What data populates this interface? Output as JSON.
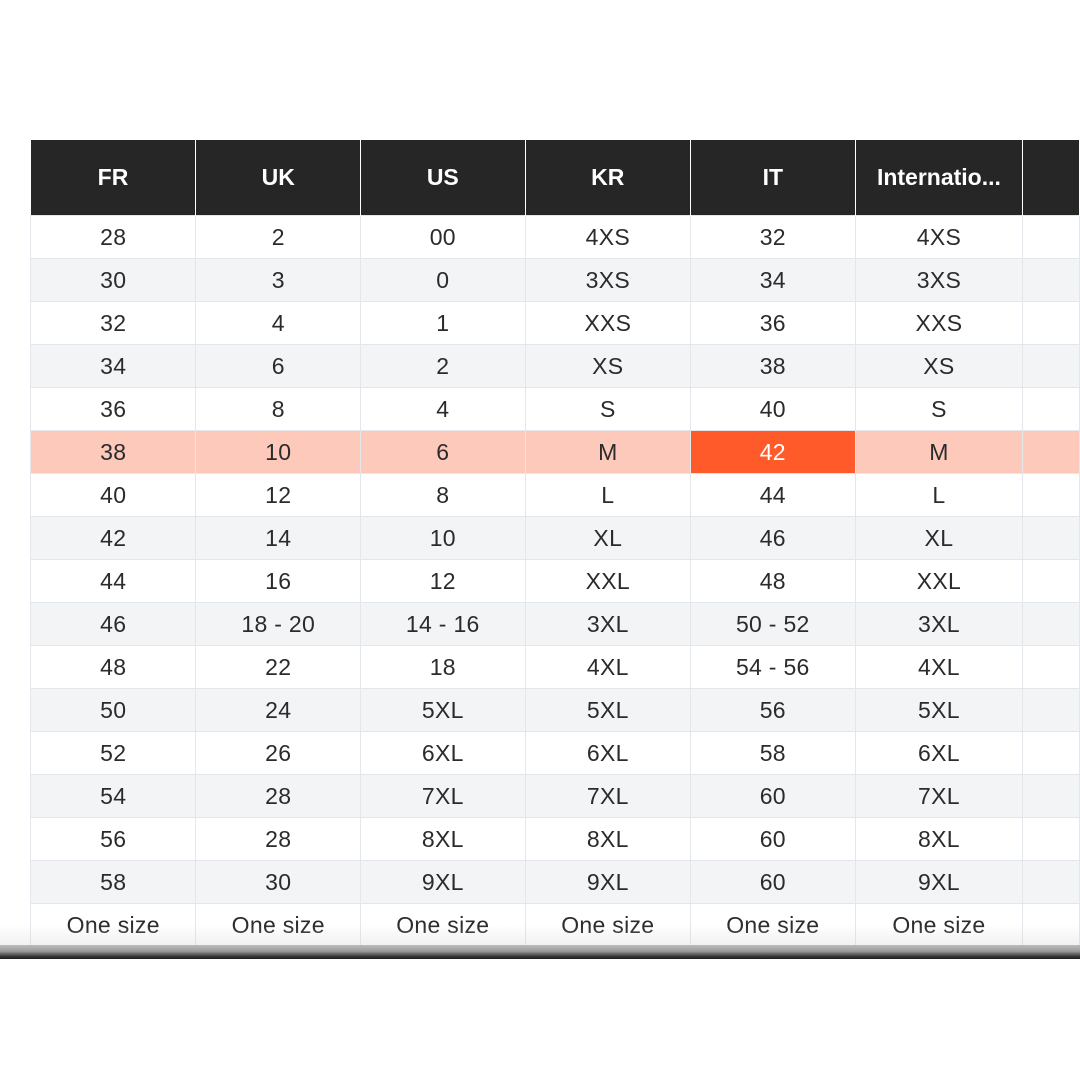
{
  "size_chart": {
    "columns": [
      "FR",
      "UK",
      "US",
      "KR",
      "IT",
      "Internatio..."
    ],
    "rows": [
      [
        "28",
        "2",
        "00",
        "4XS",
        "32",
        "4XS"
      ],
      [
        "30",
        "3",
        "0",
        "3XS",
        "34",
        "3XS"
      ],
      [
        "32",
        "4",
        "1",
        "XXS",
        "36",
        "XXS"
      ],
      [
        "34",
        "6",
        "2",
        "XS",
        "38",
        "XS"
      ],
      [
        "36",
        "8",
        "4",
        "S",
        "40",
        "S"
      ],
      [
        "38",
        "10",
        "6",
        "M",
        "42",
        "M"
      ],
      [
        "40",
        "12",
        "8",
        "L",
        "44",
        "L"
      ],
      [
        "42",
        "14",
        "10",
        "XL",
        "46",
        "XL"
      ],
      [
        "44",
        "16",
        "12",
        "XXL",
        "48",
        "XXL"
      ],
      [
        "46",
        "18 - 20",
        "14 - 16",
        "3XL",
        "50 - 52",
        "3XL"
      ],
      [
        "48",
        "22",
        "18",
        "4XL",
        "54 - 56",
        "4XL"
      ],
      [
        "50",
        "24",
        "5XL",
        "5XL",
        "56",
        "5XL"
      ],
      [
        "52",
        "26",
        "6XL",
        "6XL",
        "58",
        "6XL"
      ],
      [
        "54",
        "28",
        "7XL",
        "7XL",
        "60",
        "7XL"
      ],
      [
        "56",
        "28",
        "8XL",
        "8XL",
        "60",
        "8XL"
      ],
      [
        "58",
        "30",
        "9XL",
        "9XL",
        "60",
        "9XL"
      ],
      [
        "One size",
        "One size",
        "One size",
        "One size",
        "One size",
        "One size"
      ]
    ],
    "selected_row_index": 5,
    "selected_column_index": 4,
    "colors": {
      "header_bg": "#262626",
      "header_text": "#ffffff",
      "row_alt_bg": "#f3f4f6",
      "selected_row_bg": "#fcc9bb",
      "selected_cell_bg": "#fe5a2a"
    }
  }
}
